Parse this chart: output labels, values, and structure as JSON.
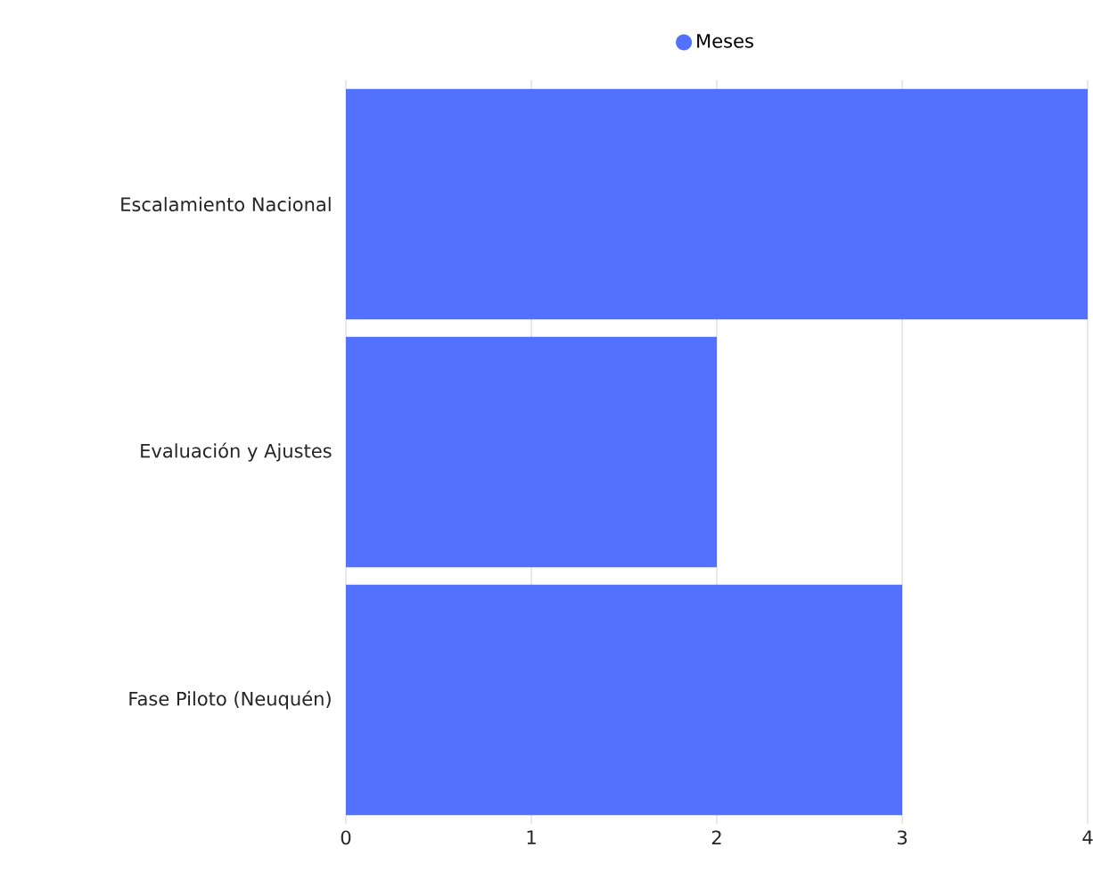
{
  "chart_data": {
    "type": "bar",
    "orientation": "horizontal",
    "categories": [
      "Escalamiento Nacional",
      "Evaluación y Ajustes",
      "Fase Piloto (Neuquén)"
    ],
    "series": [
      {
        "name": "Meses",
        "color": "#5271ff",
        "values": [
          4,
          2,
          3
        ]
      }
    ],
    "xlim": [
      0,
      4
    ],
    "xticks": [
      0,
      1,
      2,
      3,
      4
    ],
    "grid": "x",
    "legend": "top"
  }
}
